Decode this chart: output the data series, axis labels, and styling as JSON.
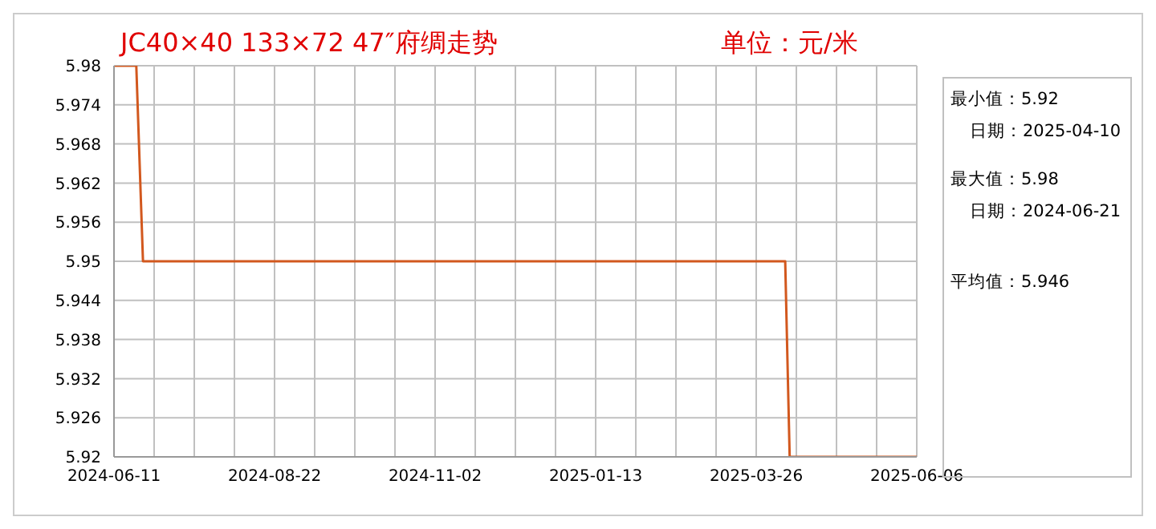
{
  "chart_data": {
    "type": "line",
    "title": "JC40×40  133×72  47″府绸走势",
    "subtitle": "单位：元/米",
    "x": [
      "2024-06-11",
      "2024-06-21",
      "2024-06-24",
      "2025-04-08",
      "2025-04-10",
      "2025-06-06"
    ],
    "series": [
      {
        "color": "#d2581e",
        "values": [
          5.98,
          5.98,
          5.95,
          5.95,
          5.92,
          5.92
        ]
      }
    ],
    "xlim": [
      "2024-06-11",
      "2025-06-06"
    ],
    "xticks": [
      "2024-06-11",
      {
        "value": "2024-06-29",
        "label": null
      },
      {
        "value": "2024-07-17",
        "label": null
      },
      {
        "value": "2024-08-04",
        "label": null
      },
      "2024-08-22",
      {
        "value": "2024-09-09",
        "label": null
      },
      {
        "value": "2024-09-27",
        "label": null
      },
      {
        "value": "2024-10-15",
        "label": null
      },
      "2024-11-02",
      {
        "value": "2024-11-20",
        "label": null
      },
      {
        "value": "2024-12-08",
        "label": null
      },
      {
        "value": "2024-12-26",
        "label": null
      },
      "2025-01-13",
      {
        "value": "2025-01-31",
        "label": null
      },
      {
        "value": "2025-02-18",
        "label": null
      },
      {
        "value": "2025-03-08",
        "label": null
      },
      "2025-03-26",
      {
        "value": "2025-04-13",
        "label": null
      },
      {
        "value": "2025-05-01",
        "label": null
      },
      {
        "value": "2025-05-19",
        "label": null
      },
      "2025-06-06"
    ],
    "ylim": [
      5.92,
      5.98
    ],
    "yticks": [
      5.92,
      5.926,
      5.932,
      5.938,
      5.944,
      5.95,
      5.956,
      5.962,
      5.968,
      5.974,
      5.98
    ],
    "grid": true,
    "marker": "none",
    "line_style": "solid",
    "annotations": [
      "最小值：5.92",
      "日期：2025-04-10",
      "最大值：5.98",
      "日期：2024-06-21",
      "平均值：5.946"
    ]
  }
}
